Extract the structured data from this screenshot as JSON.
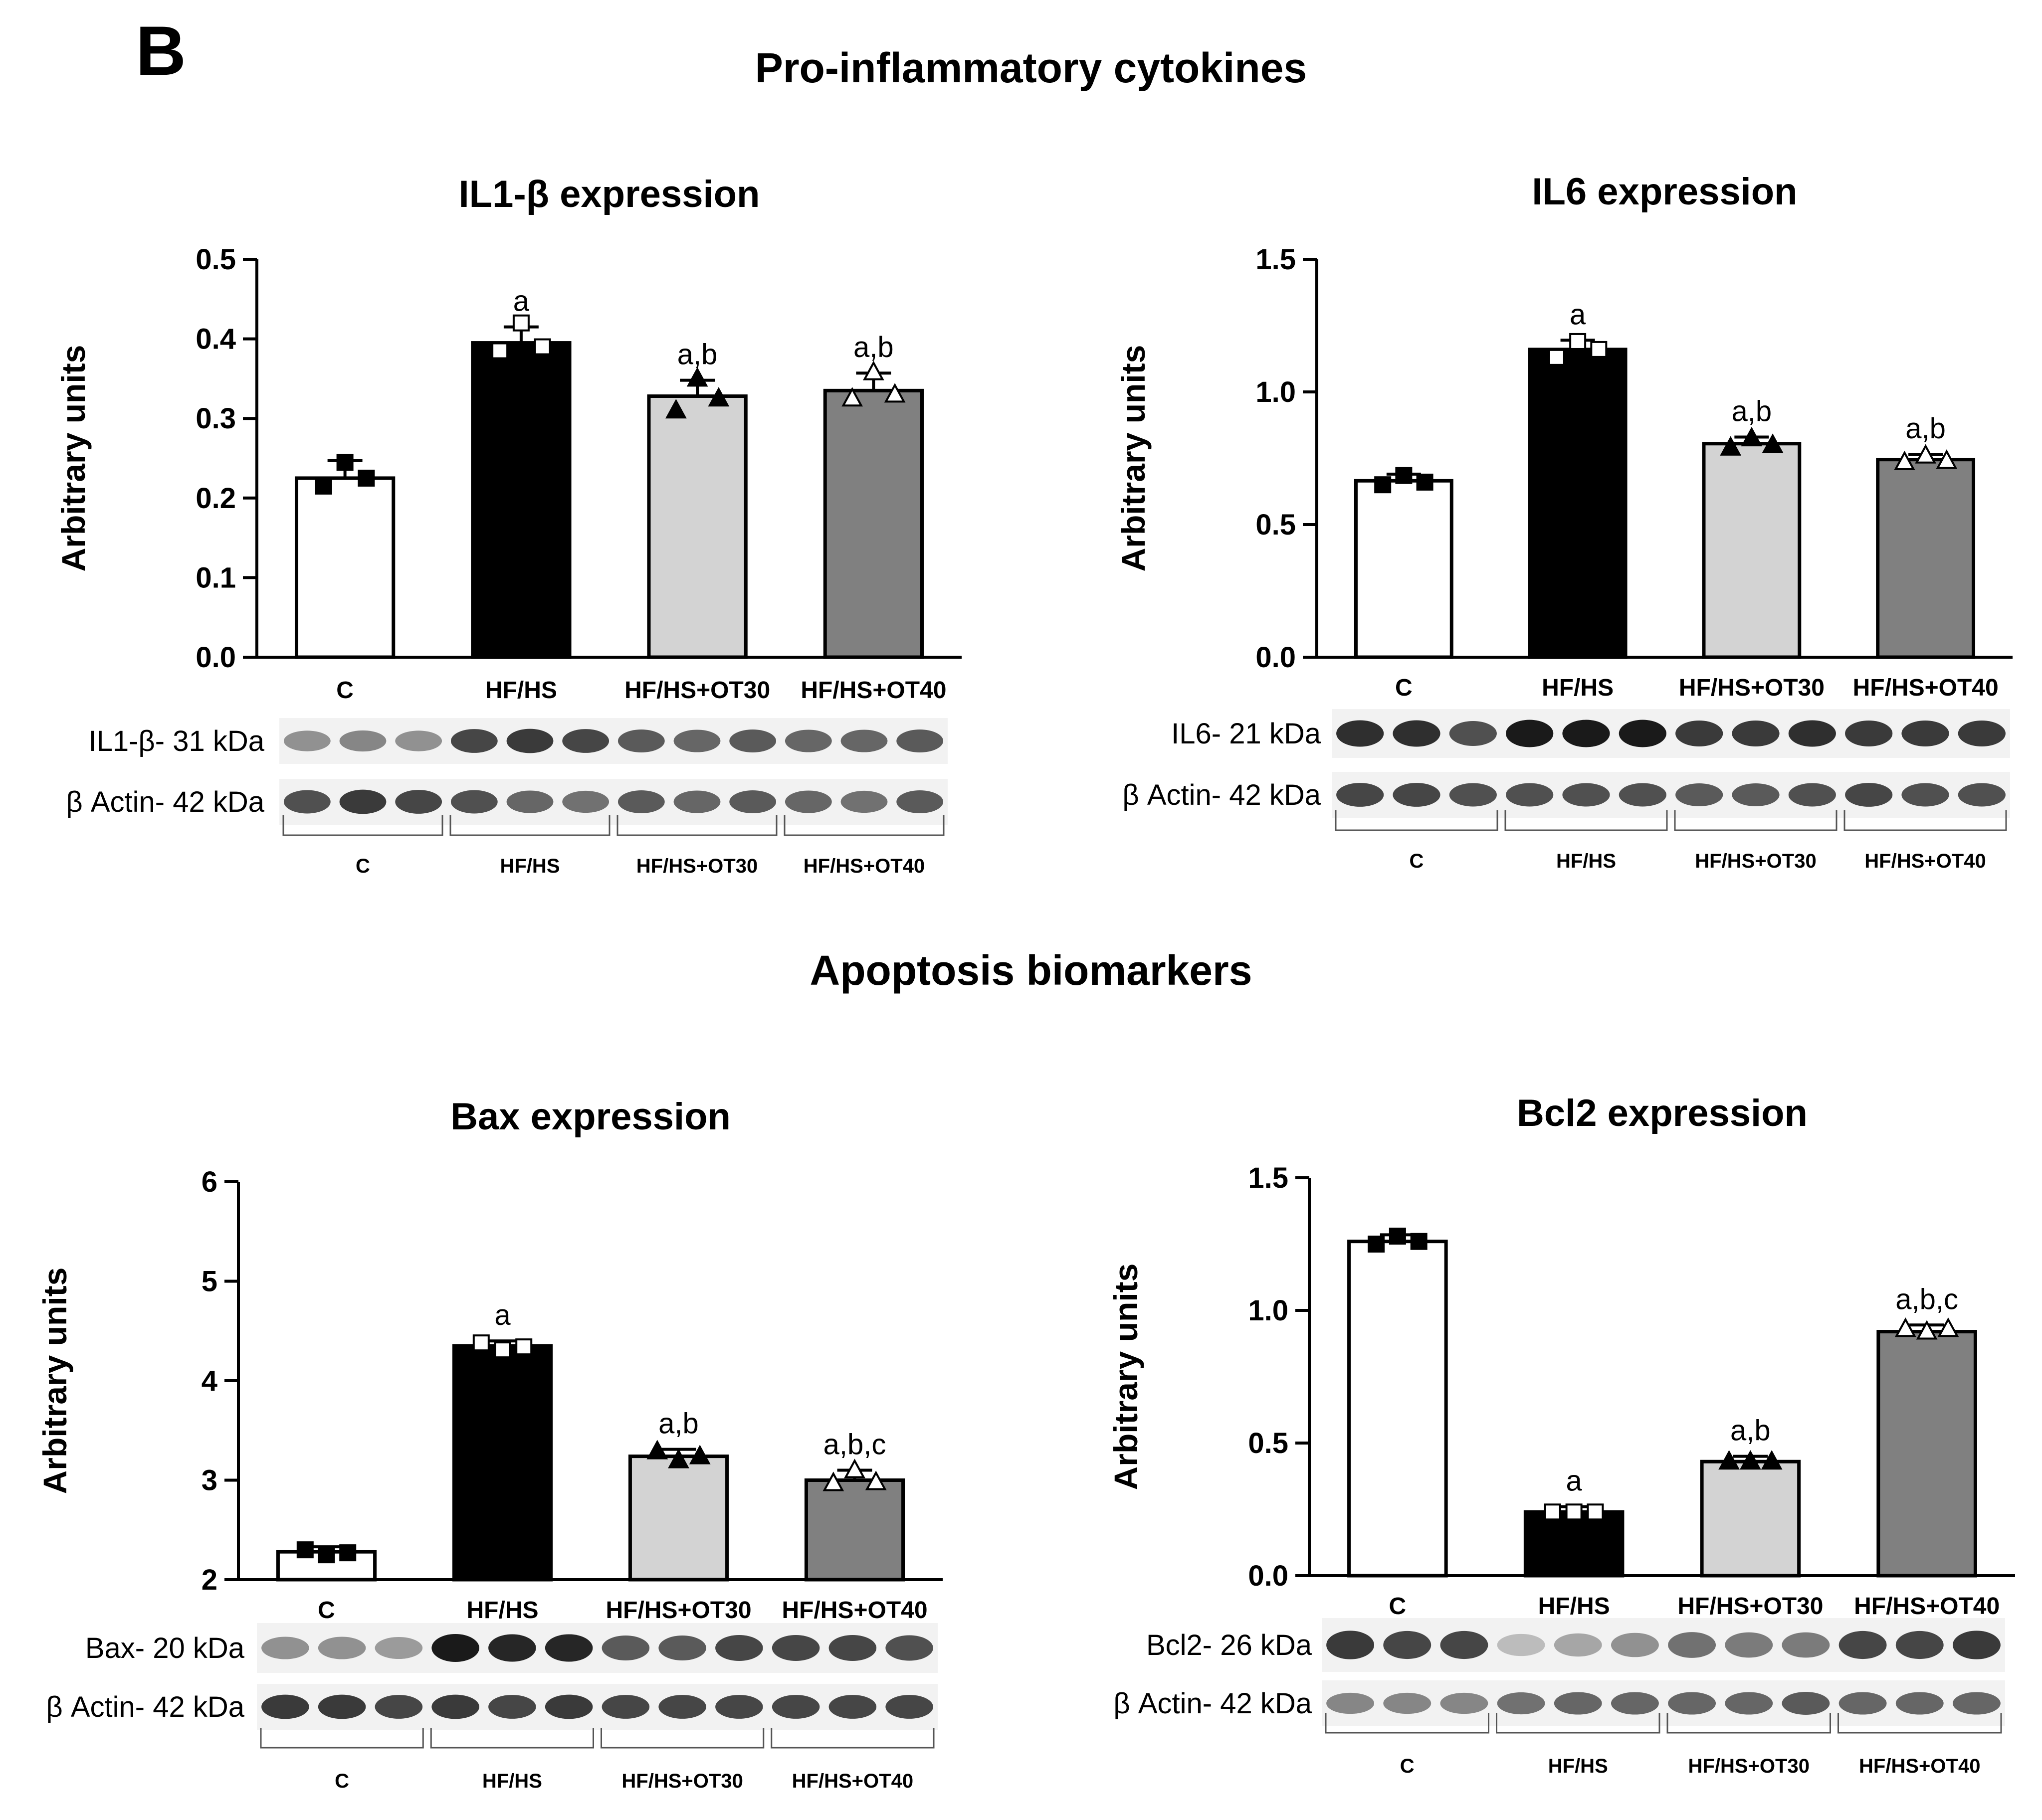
{
  "figure": {
    "panel_letter": "B",
    "section_titles": [
      "Pro-inflammatory cytokines",
      "Apoptosis biomarkers"
    ]
  },
  "group_labels": [
    "C",
    "HF/HS",
    "HF/HS+OT30",
    "HF/HS+OT40"
  ],
  "colors": {
    "bar_fills": [
      "#ffffff",
      "#000000",
      "#d3d3d3",
      "#808080"
    ],
    "point_fills": [
      "#000000",
      "#ffffff",
      "#000000",
      "#ffffff"
    ],
    "point_shapes": [
      "square",
      "square",
      "triangle",
      "triangle"
    ],
    "blot_background": "#f2f2f2",
    "band_color": "#1a1a1a"
  },
  "chart_data": [
    {
      "type": "bar",
      "title": "IL1-β expression",
      "ylabel": "Arbitrary units",
      "ylim": [
        0,
        0.5
      ],
      "yticks": [
        "0.0",
        "0.1",
        "0.2",
        "0.3",
        "0.4",
        "0.5"
      ],
      "categories": [
        "C",
        "HF/HS",
        "HF/HS+OT30",
        "HF/HS+OT40"
      ],
      "values": [
        0.225,
        0.395,
        0.328,
        0.335
      ],
      "errors": [
        0.022,
        0.02,
        0.02,
        0.022
      ],
      "points": [
        [
          0.245,
          0.215,
          0.225
        ],
        [
          0.42,
          0.385,
          0.39
        ],
        [
          0.35,
          0.31,
          0.325
        ],
        [
          0.358,
          0.325,
          0.33
        ]
      ],
      "annotations": [
        "",
        "a",
        "a,b",
        "a,b"
      ],
      "blots": [
        {
          "label": "IL1-β- 31 kDa",
          "intensities": [
            0.45,
            0.5,
            0.45,
            0.8,
            0.85,
            0.8,
            0.7,
            0.65,
            0.7,
            0.65,
            0.65,
            0.7
          ]
        },
        {
          "label": "β Actin- 42 kDa",
          "intensities": [
            0.75,
            0.85,
            0.8,
            0.75,
            0.65,
            0.6,
            0.7,
            0.65,
            0.7,
            0.65,
            0.6,
            0.7
          ]
        }
      ],
      "lane_groups": [
        "C",
        "HF/HS",
        "HF/HS+OT30",
        "HF/HS+OT40"
      ]
    },
    {
      "type": "bar",
      "title": "IL6 expression",
      "ylabel": "Arbitrary units",
      "ylim": [
        0,
        1.5
      ],
      "yticks": [
        "0.0",
        "0.5",
        "1.0",
        "1.5"
      ],
      "categories": [
        "C",
        "HF/HS",
        "HF/HS+OT30",
        "HF/HS+OT40"
      ],
      "values": [
        0.665,
        1.16,
        0.805,
        0.745
      ],
      "errors": [
        0.025,
        0.035,
        0.025,
        0.02
      ],
      "points": [
        [
          0.685,
          0.65,
          0.66
        ],
        [
          1.19,
          1.13,
          1.16
        ],
        [
          0.825,
          0.79,
          0.8
        ],
        [
          0.76,
          0.735,
          0.74
        ]
      ],
      "annotations": [
        "",
        "a",
        "a,b",
        "a,b"
      ],
      "blots": [
        {
          "label": "IL6- 21 kDa",
          "intensities": [
            0.9,
            0.9,
            0.75,
            1.0,
            1.0,
            1.0,
            0.85,
            0.85,
            0.9,
            0.85,
            0.85,
            0.85
          ]
        },
        {
          "label": "β Actin- 42 kDa",
          "intensities": [
            0.8,
            0.8,
            0.75,
            0.75,
            0.75,
            0.75,
            0.7,
            0.7,
            0.75,
            0.8,
            0.75,
            0.75
          ]
        }
      ],
      "lane_groups": [
        "C",
        "HF/HS",
        "HF/HS+OT30",
        "HF/HS+OT40"
      ]
    },
    {
      "type": "bar",
      "title": "Bax expression",
      "ylabel": "Arbitrary units",
      "ylim": [
        2,
        6
      ],
      "yticks": [
        "2",
        "3",
        "4",
        "5",
        "6"
      ],
      "categories": [
        "C",
        "HF/HS",
        "HF/HS+OT30",
        "HF/HS+OT40"
      ],
      "values": [
        2.28,
        4.35,
        3.24,
        3.0
      ],
      "errors": [
        0.05,
        0.05,
        0.07,
        0.1
      ],
      "points": [
        [
          2.25,
          2.3,
          2.27
        ],
        [
          4.31,
          4.38,
          4.34
        ],
        [
          3.2,
          3.29,
          3.24
        ],
        [
          3.1,
          2.97,
          2.98
        ]
      ],
      "annotations": [
        "",
        "a",
        "a,b",
        "a,b,c"
      ],
      "blots": [
        {
          "label": "Bax- 20 kDa",
          "intensities": [
            0.45,
            0.45,
            0.4,
            1.0,
            0.95,
            0.95,
            0.7,
            0.7,
            0.8,
            0.8,
            0.8,
            0.75
          ]
        },
        {
          "label": "β Actin- 42 kDa",
          "intensities": [
            0.85,
            0.85,
            0.8,
            0.85,
            0.8,
            0.85,
            0.8,
            0.8,
            0.8,
            0.8,
            0.8,
            0.8
          ]
        }
      ],
      "lane_groups": [
        "C",
        "HF/HS",
        "HF/HS+OT30",
        "HF/HS+OT40"
      ]
    },
    {
      "type": "bar",
      "title": "Bcl2 expression",
      "ylabel": "Arbitrary units",
      "ylim": [
        0,
        1.5
      ],
      "yticks": [
        "0.0",
        "0.5",
        "1.0",
        "1.5"
      ],
      "categories": [
        "C",
        "HF/HS",
        "HF/HS+OT30",
        "HF/HS+OT40"
      ],
      "values": [
        1.26,
        0.24,
        0.43,
        0.92
      ],
      "errors": [
        0.025,
        0.02,
        0.02,
        0.025
      ],
      "points": [
        [
          1.28,
          1.25,
          1.26
        ],
        [
          0.24,
          0.24,
          0.24
        ],
        [
          0.43,
          0.43,
          0.43
        ],
        [
          0.92,
          0.93,
          0.93
        ]
      ],
      "annotations": [
        "",
        "a",
        "a,b",
        "a,b,c"
      ],
      "blots": [
        {
          "label": "Bcl2- 26 kDa",
          "intensities": [
            0.85,
            0.8,
            0.8,
            0.25,
            0.35,
            0.45,
            0.6,
            0.55,
            0.55,
            0.8,
            0.8,
            0.85
          ]
        },
        {
          "label": "β Actin- 42 kDa",
          "intensities": [
            0.5,
            0.5,
            0.5,
            0.6,
            0.65,
            0.65,
            0.65,
            0.65,
            0.7,
            0.65,
            0.65,
            0.65
          ]
        }
      ],
      "lane_groups": [
        "C",
        "HF/HS",
        "HF/HS+OT30",
        "HF/HS+OT40"
      ]
    }
  ]
}
